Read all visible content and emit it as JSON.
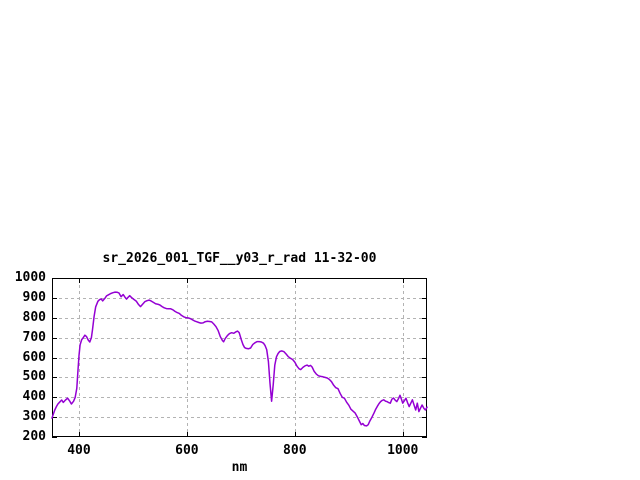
{
  "window": {
    "background": "#ffffff"
  },
  "chart": {
    "title": "sr_2026_001_TGF__y03_r_rad 11-32-00",
    "xlabel": "nm",
    "line_color": "#9400d3",
    "grid_color": "#b3b3b3",
    "axis_color": "#000000",
    "text_color": "#000000"
  },
  "chart_data": {
    "type": "line",
    "title": "sr_2026_001_TGF__y03_r_rad 11-32-00",
    "xlabel": "nm",
    "ylabel": "",
    "xlim": [
      350,
      1045
    ],
    "ylim": [
      200,
      1000
    ],
    "xticks": [
      400,
      600,
      800,
      1000
    ],
    "yticks": [
      200,
      300,
      400,
      500,
      600,
      700,
      800,
      900,
      1000
    ],
    "grid": true,
    "legend_position": "none",
    "series": [
      {
        "name": "sr_2026_001_TGF__y03_r_rad",
        "color": "#9400d3",
        "points": [
          [
            350,
            295
          ],
          [
            352,
            312
          ],
          [
            355,
            335
          ],
          [
            358,
            352
          ],
          [
            361,
            366
          ],
          [
            364,
            375
          ],
          [
            368,
            386
          ],
          [
            371,
            374
          ],
          [
            375,
            386
          ],
          [
            379,
            395
          ],
          [
            383,
            380
          ],
          [
            386,
            366
          ],
          [
            390,
            380
          ],
          [
            393,
            400
          ],
          [
            396,
            445
          ],
          [
            398,
            530
          ],
          [
            400,
            610
          ],
          [
            402,
            664
          ],
          [
            405,
            690
          ],
          [
            408,
            700
          ],
          [
            411,
            712
          ],
          [
            414,
            705
          ],
          [
            417,
            688
          ],
          [
            420,
            678
          ],
          [
            423,
            700
          ],
          [
            425,
            740
          ],
          [
            428,
            807
          ],
          [
            431,
            855
          ],
          [
            435,
            883
          ],
          [
            438,
            891
          ],
          [
            441,
            895
          ],
          [
            444,
            885
          ],
          [
            448,
            898
          ],
          [
            451,
            910
          ],
          [
            455,
            916
          ],
          [
            459,
            922
          ],
          [
            463,
            926
          ],
          [
            467,
            929
          ],
          [
            471,
            928
          ],
          [
            474,
            925
          ],
          [
            478,
            906
          ],
          [
            482,
            917
          ],
          [
            485,
            905
          ],
          [
            488,
            894
          ],
          [
            491,
            903
          ],
          [
            494,
            911
          ],
          [
            498,
            900
          ],
          [
            502,
            892
          ],
          [
            506,
            884
          ],
          [
            510,
            868
          ],
          [
            514,
            856
          ],
          [
            518,
            868
          ],
          [
            522,
            881
          ],
          [
            526,
            886
          ],
          [
            530,
            889
          ],
          [
            534,
            884
          ],
          [
            538,
            877
          ],
          [
            542,
            870
          ],
          [
            546,
            868
          ],
          [
            550,
            864
          ],
          [
            554,
            856
          ],
          [
            558,
            850
          ],
          [
            562,
            846
          ],
          [
            566,
            845
          ],
          [
            570,
            845
          ],
          [
            574,
            840
          ],
          [
            578,
            832
          ],
          [
            582,
            826
          ],
          [
            586,
            822
          ],
          [
            590,
            812
          ],
          [
            594,
            805
          ],
          [
            598,
            801
          ],
          [
            602,
            799
          ],
          [
            606,
            796
          ],
          [
            610,
            790
          ],
          [
            614,
            784
          ],
          [
            618,
            780
          ],
          [
            622,
            776
          ],
          [
            626,
            773
          ],
          [
            630,
            774
          ],
          [
            634,
            780
          ],
          [
            638,
            782
          ],
          [
            642,
            781
          ],
          [
            646,
            779
          ],
          [
            650,
            768
          ],
          [
            654,
            755
          ],
          [
            658,
            735
          ],
          [
            662,
            705
          ],
          [
            666,
            685
          ],
          [
            668,
            679
          ],
          [
            671,
            695
          ],
          [
            675,
            710
          ],
          [
            679,
            720
          ],
          [
            683,
            725
          ],
          [
            687,
            722
          ],
          [
            690,
            728
          ],
          [
            694,
            733
          ],
          [
            697,
            725
          ],
          [
            701,
            688
          ],
          [
            704,
            665
          ],
          [
            707,
            650
          ],
          [
            710,
            646
          ],
          [
            714,
            644
          ],
          [
            718,
            648
          ],
          [
            722,
            665
          ],
          [
            726,
            674
          ],
          [
            730,
            680
          ],
          [
            734,
            680
          ],
          [
            738,
            678
          ],
          [
            742,
            672
          ],
          [
            745,
            660
          ],
          [
            748,
            640
          ],
          [
            751,
            580
          ],
          [
            754,
            470
          ],
          [
            757,
            380
          ],
          [
            760,
            462
          ],
          [
            763,
            562
          ],
          [
            766,
            604
          ],
          [
            769,
            620
          ],
          [
            772,
            630
          ],
          [
            776,
            633
          ],
          [
            780,
            629
          ],
          [
            784,
            617
          ],
          [
            788,
            604
          ],
          [
            792,
            596
          ],
          [
            796,
            590
          ],
          [
            800,
            577
          ],
          [
            804,
            556
          ],
          [
            808,
            543
          ],
          [
            811,
            539
          ],
          [
            815,
            550
          ],
          [
            819,
            558
          ],
          [
            823,
            562
          ],
          [
            826,
            556
          ],
          [
            829,
            560
          ],
          [
            832,
            552
          ],
          [
            836,
            530
          ],
          [
            840,
            516
          ],
          [
            844,
            508
          ],
          [
            848,
            505
          ],
          [
            852,
            503
          ],
          [
            856,
            500
          ],
          [
            860,
            497
          ],
          [
            864,
            490
          ],
          [
            868,
            478
          ],
          [
            872,
            460
          ],
          [
            876,
            448
          ],
          [
            880,
            443
          ],
          [
            884,
            420
          ],
          [
            888,
            400
          ],
          [
            892,
            395
          ],
          [
            896,
            375
          ],
          [
            900,
            360
          ],
          [
            904,
            340
          ],
          [
            908,
            330
          ],
          [
            912,
            320
          ],
          [
            916,
            300
          ],
          [
            920,
            278
          ],
          [
            923,
            262
          ],
          [
            926,
            268
          ],
          [
            929,
            258
          ],
          [
            933,
            256
          ],
          [
            936,
            262
          ],
          [
            939,
            280
          ],
          [
            943,
            300
          ],
          [
            947,
            322
          ],
          [
            950,
            340
          ],
          [
            953,
            355
          ],
          [
            956,
            368
          ],
          [
            959,
            378
          ],
          [
            962,
            384
          ],
          [
            965,
            387
          ],
          [
            968,
            380
          ],
          [
            971,
            378
          ],
          [
            974,
            373
          ],
          [
            977,
            370
          ],
          [
            980,
            390
          ],
          [
            983,
            396
          ],
          [
            986,
            385
          ],
          [
            989,
            378
          ],
          [
            992,
            392
          ],
          [
            995,
            410
          ],
          [
            998,
            388
          ],
          [
            1000,
            370
          ],
          [
            1003,
            382
          ],
          [
            1006,
            395
          ],
          [
            1009,
            372
          ],
          [
            1012,
            353
          ],
          [
            1015,
            370
          ],
          [
            1018,
            387
          ],
          [
            1021,
            360
          ],
          [
            1024,
            336
          ],
          [
            1027,
            370
          ],
          [
            1030,
            328
          ],
          [
            1033,
            345
          ],
          [
            1036,
            361
          ],
          [
            1039,
            345
          ],
          [
            1042,
            336
          ],
          [
            1045,
            350
          ]
        ]
      }
    ]
  }
}
